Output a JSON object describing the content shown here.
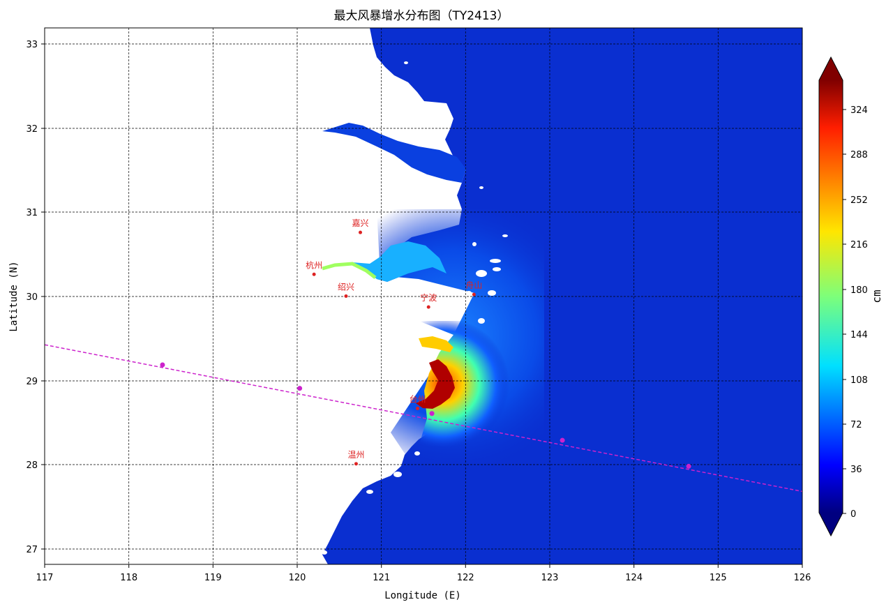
{
  "title": "最大风暴增水分布图（TY2413）",
  "xlabel": "Longitude (E)",
  "ylabel": "Latitude (N)",
  "colorbar": {
    "label": "cm",
    "ticks": [
      "0",
      "36",
      "72",
      "108",
      "144",
      "180",
      "216",
      "252",
      "288",
      "324"
    ],
    "range": [
      0,
      348
    ],
    "colormap": "jet"
  },
  "map": {
    "lon_range": [
      117,
      126
    ],
    "lat_range": [
      26.8,
      33.2
    ],
    "x_ticks": [
      "117",
      "118",
      "119",
      "120",
      "121",
      "122",
      "123",
      "124",
      "125",
      "126"
    ],
    "y_ticks": [
      "27",
      "28",
      "29",
      "30",
      "31",
      "32",
      "33"
    ],
    "grid": true,
    "land_color": "#ffffff",
    "sea_color": "#0a2fd0",
    "track_color": "#cc22cc",
    "city_color": "#dd2222"
  },
  "cities": [
    {
      "name": "嘉兴",
      "lon": 120.75,
      "lat": 30.76
    },
    {
      "name": "杭州",
      "lon": 120.2,
      "lat": 30.26
    },
    {
      "name": "绍兴",
      "lon": 120.58,
      "lat": 30.0
    },
    {
      "name": "宁波",
      "lon": 121.56,
      "lat": 29.87
    },
    {
      "name": "舟山",
      "lon": 122.1,
      "lat": 30.02
    },
    {
      "name": "台州",
      "lon": 121.43,
      "lat": 28.66
    },
    {
      "name": "温州",
      "lon": 120.7,
      "lat": 28.0
    }
  ],
  "typhoon_track": [
    {
      "lon": 118.4,
      "lat": 29.18
    },
    {
      "lon": 120.03,
      "lat": 28.9
    },
    {
      "lon": 121.6,
      "lat": 28.6
    },
    {
      "lon": 123.15,
      "lat": 28.28
    },
    {
      "lon": 124.65,
      "lat": 27.97
    }
  ],
  "track_line": {
    "start": {
      "lon": 117.0,
      "lat": 29.42
    },
    "end": {
      "lon": 126.0,
      "lat": 27.67
    }
  }
}
